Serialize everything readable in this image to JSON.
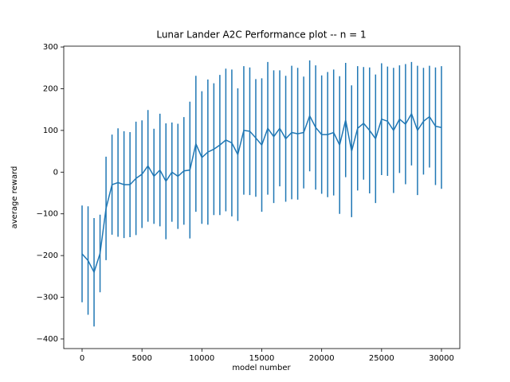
{
  "chart_data": {
    "type": "errorbar",
    "title": "Lunar Lander A2C Performance plot -- n = 1",
    "x_label": "model number",
    "y_label": "average reward",
    "color": "#1f77b4",
    "x": [
      0,
      500,
      1000,
      1500,
      2000,
      2500,
      3000,
      3500,
      4000,
      4500,
      5000,
      5500,
      6000,
      6500,
      7000,
      7500,
      8000,
      8500,
      9000,
      9500,
      10000,
      10500,
      11000,
      11500,
      12000,
      12500,
      13000,
      13500,
      14000,
      14500,
      15000,
      15500,
      16000,
      16500,
      17000,
      17500,
      18000,
      18500,
      19000,
      19500,
      20000,
      20500,
      21000,
      21500,
      22000,
      22500,
      23000,
      23500,
      24000,
      24500,
      25000,
      25500,
      26000,
      26500,
      27000,
      27500,
      28000,
      28500,
      29000,
      29500,
      30000
    ],
    "values": [
      -196,
      -212,
      -240,
      -195,
      -87,
      -30,
      -25,
      -30,
      -30,
      -15,
      -5,
      15,
      -10,
      5,
      -22,
      0,
      -10,
      3,
      5,
      68,
      35,
      48,
      55,
      65,
      77,
      70,
      42,
      100,
      98,
      82,
      65,
      105,
      85,
      105,
      80,
      95,
      92,
      95,
      135,
      107,
      90,
      90,
      95,
      65,
      125,
      50,
      105,
      117,
      100,
      80,
      127,
      122,
      100,
      127,
      115,
      140,
      100,
      122,
      133,
      110,
      107
    ],
    "errors": [
      116,
      130,
      130,
      93,
      124,
      120,
      130,
      128,
      126,
      136,
      129,
      134,
      114,
      135,
      139,
      119,
      126,
      129,
      164,
      163,
      159,
      174,
      158,
      168,
      171,
      176,
      159,
      154,
      153,
      141,
      160,
      159,
      159,
      139,
      151,
      160,
      158,
      134,
      133,
      149,
      142,
      150,
      151,
      165,
      137,
      158,
      149,
      135,
      151,
      154,
      134,
      131,
      150,
      129,
      144,
      124,
      155,
      128,
      122,
      141,
      147
    ],
    "xlim": [
      -1530,
      31530
    ],
    "ylim": [
      -423,
      302
    ],
    "xticks": [
      0,
      5000,
      10000,
      15000,
      20000,
      25000,
      30000
    ],
    "yticks": [
      {
        "value": -400,
        "label": "−400"
      },
      {
        "value": -300,
        "label": "−300"
      },
      {
        "value": -200,
        "label": "−200"
      },
      {
        "value": -100,
        "label": "−100"
      },
      0,
      100,
      200,
      300
    ]
  }
}
